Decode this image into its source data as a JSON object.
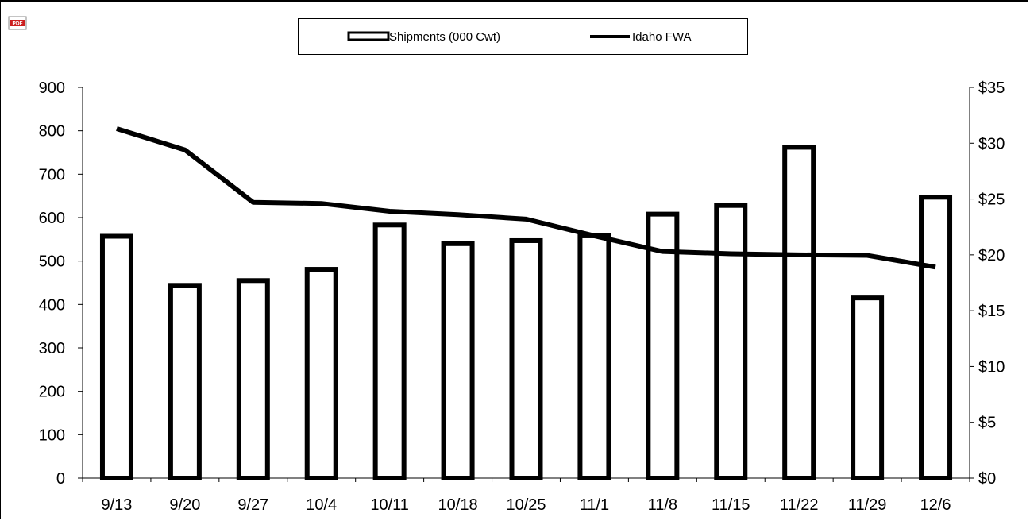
{
  "toolbar": {
    "pdf_icon": "pdf-icon",
    "pdf_color": "#cc1f1f"
  },
  "chart_data": {
    "type": "bar",
    "categories": [
      "9/13",
      "9/20",
      "9/27",
      "10/4",
      "10/11",
      "10/18",
      "10/25",
      "11/1",
      "11/8",
      "11/15",
      "11/22",
      "11/29",
      "12/6"
    ],
    "series": [
      {
        "name": "Shipments (000 Cwt)",
        "type": "bar",
        "axis": "left",
        "values": [
          557,
          444,
          455,
          481,
          583,
          540,
          547,
          558,
          608,
          628,
          762,
          415,
          647
        ]
      },
      {
        "name": "Idaho FWA",
        "type": "line",
        "axis": "right",
        "values": [
          31.3,
          29.4,
          24.7,
          24.6,
          23.9,
          23.6,
          23.2,
          21.7,
          20.3,
          20.1,
          20.0,
          19.95,
          18.9
        ]
      }
    ],
    "y_left": {
      "min": 0,
      "max": 900,
      "step": 100,
      "ticks": [
        "0",
        "100",
        "200",
        "300",
        "400",
        "500",
        "600",
        "700",
        "800",
        "900"
      ]
    },
    "y_right": {
      "min": 0,
      "max": 35,
      "step": 5,
      "ticks": [
        "$0",
        "$5",
        "$10",
        "$15",
        "$20",
        "$25",
        "$30",
        "$35"
      ]
    },
    "legend_position": "top-center",
    "grid": false,
    "colors": {
      "bar_fill": "#ffffff",
      "bar_stroke": "#000000",
      "line": "#000000"
    }
  }
}
